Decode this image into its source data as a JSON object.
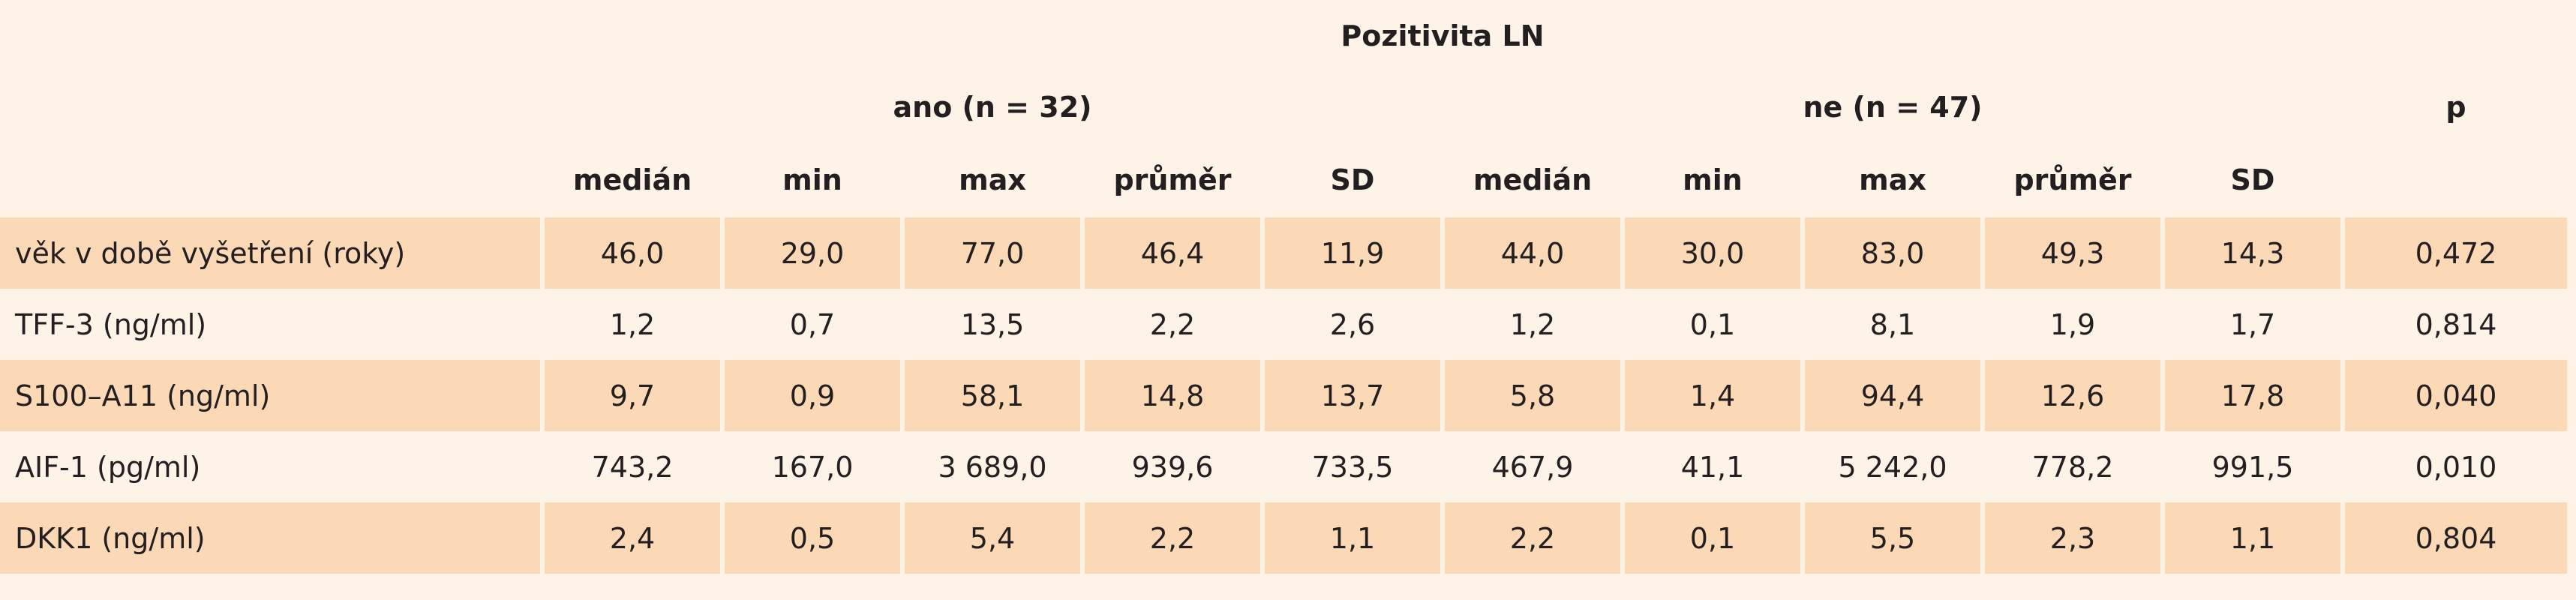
{
  "header": {
    "title": "Pozitivita LN",
    "groups": [
      "ano (n = 32)",
      "ne (n = 47)"
    ],
    "p_label": "p"
  },
  "table": {
    "columns": [
      "medián",
      "min",
      "max",
      "průměr",
      "SD",
      "medián",
      "min",
      "max",
      "průměr",
      "SD"
    ],
    "rows": [
      {
        "label": "věk v době vyšetření (roky)",
        "values": [
          "46,0",
          "29,0",
          "77,0",
          "46,4",
          "11,9",
          "44,0",
          "30,0",
          "83,0",
          "49,3",
          "14,3",
          "0,472"
        ]
      },
      {
        "label": "TFF-3 (ng/ml)",
        "values": [
          "1,2",
          "0,7",
          "13,5",
          "2,2",
          "2,6",
          "1,2",
          "0,1",
          "8,1",
          "1,9",
          "1,7",
          "0,814"
        ]
      },
      {
        "label": "S100–A11 (ng/ml)",
        "values": [
          "9,7",
          "0,9",
          "58,1",
          "14,8",
          "13,7",
          "5,8",
          "1,4",
          "94,4",
          "12,6",
          "17,8",
          "0,040"
        ]
      },
      {
        "label": "AIF-1 (pg/ml)",
        "values": [
          "743,2",
          "167,0",
          "3 689,0",
          "939,6",
          "733,5",
          "467,9",
          "41,1",
          "5 242,0",
          "778,2",
          "991,5",
          "0,010"
        ]
      },
      {
        "label": "DKK1 (ng/ml)",
        "values": [
          "2,4",
          "0,5",
          "5,4",
          "2,2",
          "1,1",
          "2,2",
          "0,1",
          "5,5",
          "2,3",
          "1,1",
          "0,804"
        ]
      }
    ]
  }
}
